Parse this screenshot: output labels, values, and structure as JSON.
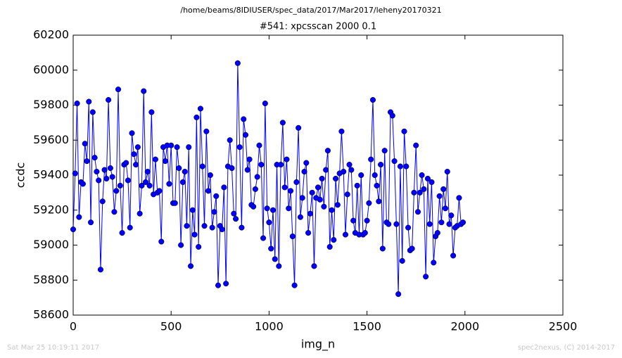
{
  "chart_data": {
    "type": "line",
    "suptitle": "/home/beams/8IDIUSER/spec_data/2017/Mar2017/leheny20170321",
    "title": "#541: xpcsscan 2000 0.1",
    "xlabel": "img_n",
    "ylabel": "ccdc",
    "footer_left": "Sat Mar 25 10:19:11 2017",
    "footer_right": "spec2nexus, (C) 2014-2017",
    "xlim": [
      0,
      2500
    ],
    "xticks": [
      0,
      500,
      1000,
      1500,
      2000,
      2500
    ],
    "ylim": [
      58600,
      60200
    ],
    "yticks": [
      58600,
      58800,
      59000,
      59200,
      59400,
      59600,
      59800,
      60000,
      60200
    ],
    "x": [
      0,
      10,
      20,
      30,
      40,
      50,
      60,
      70,
      80,
      90,
      100,
      110,
      120,
      130,
      140,
      150,
      160,
      170,
      180,
      190,
      200,
      210,
      220,
      230,
      240,
      250,
      260,
      270,
      280,
      290,
      300,
      310,
      320,
      330,
      340,
      350,
      360,
      370,
      380,
      390,
      400,
      410,
      420,
      430,
      440,
      450,
      460,
      470,
      480,
      490,
      500,
      510,
      520,
      530,
      540,
      550,
      560,
      570,
      580,
      590,
      600,
      610,
      620,
      630,
      640,
      650,
      660,
      670,
      680,
      690,
      700,
      710,
      720,
      730,
      740,
      750,
      760,
      770,
      780,
      790,
      800,
      810,
      820,
      830,
      840,
      850,
      860,
      870,
      880,
      890,
      900,
      910,
      920,
      930,
      940,
      950,
      960,
      970,
      980,
      990,
      1000,
      1010,
      1020,
      1030,
      1040,
      1050,
      1060,
      1070,
      1080,
      1090,
      1100,
      1110,
      1120,
      1130,
      1140,
      1150,
      1160,
      1170,
      1180,
      1190,
      1200,
      1210,
      1220,
      1230,
      1240,
      1250,
      1260,
      1270,
      1280,
      1290,
      1300,
      1310,
      1320,
      1330,
      1340,
      1350,
      1360,
      1370,
      1380,
      1390,
      1400,
      1410,
      1420,
      1430,
      1440,
      1450,
      1460,
      1470,
      1480,
      1490,
      1500,
      1510,
      1520,
      1530,
      1540,
      1550,
      1560,
      1570,
      1580,
      1590,
      1600,
      1610,
      1620,
      1630,
      1640,
      1650,
      1660,
      1670,
      1680,
      1690,
      1700,
      1710,
      1720,
      1730,
      1740,
      1750,
      1760,
      1770,
      1780,
      1790,
      1800,
      1810,
      1820,
      1830,
      1840,
      1850,
      1860,
      1870,
      1880,
      1890,
      1900,
      1910,
      1920,
      1930,
      1940,
      1950,
      1960,
      1970,
      1980,
      1990
    ],
    "series": [
      {
        "color": "#0000ff",
        "values": [
          59090,
          59410,
          59810,
          59160,
          59360,
          59350,
          59580,
          59480,
          59820,
          59130,
          59760,
          59500,
          59420,
          59370,
          58860,
          59250,
          59430,
          59380,
          59830,
          59440,
          59390,
          59190,
          59310,
          59890,
          59340,
          59070,
          59460,
          59470,
          59370,
          59100,
          59640,
          59520,
          59460,
          59560,
          59180,
          59340,
          59880,
          59360,
          59420,
          59340,
          59760,
          59290,
          59490,
          59300,
          59310,
          59020,
          59560,
          59480,
          59570,
          59350,
          59570,
          59240,
          59240,
          59560,
          59440,
          59000,
          59360,
          59420,
          59110,
          59560,
          58880,
          59200,
          59060,
          59730,
          58990,
          59780,
          59450,
          59110,
          59650,
          59310,
          59400,
          59100,
          59190,
          59280,
          58770,
          59110,
          59090,
          59330,
          58780,
          59450,
          59600,
          59440,
          59180,
          59150,
          60040,
          59560,
          59100,
          59720,
          59630,
          59430,
          59490,
          59230,
          59220,
          59320,
          59390,
          59570,
          59460,
          59040,
          59810,
          59210,
          59130,
          58980,
          59200,
          58920,
          59460,
          58880,
          59460,
          59700,
          59330,
          59490,
          59210,
          59310,
          59050,
          58770,
          59360,
          59670,
          59160,
          59270,
          59420,
          59470,
          59070,
          59180,
          59300,
          58880,
          59270,
          59330,
          59260,
          59380,
          59220,
          59430,
          59540,
          58990,
          59200,
          59030,
          59380,
          59230,
          59410,
          59650,
          59420,
          59060,
          59290,
          59460,
          59430,
          59140,
          59070,
          59340,
          59060,
          59400,
          59060,
          59070,
          59140,
          59240,
          59490,
          59830,
          59400,
          59340,
          59250,
          59460,
          58980,
          59540,
          59130,
          59120,
          59760,
          59740,
          59480,
          59120,
          58720,
          59450,
          58910,
          59650,
          59450,
          59100,
          58970,
          58980,
          59300,
          59570,
          59190,
          59300,
          59400,
          59320,
          58820,
          59380,
          59120,
          59360,
          58900,
          59050,
          59070,
          59280,
          59130,
          59320,
          59210,
          59420,
          59120,
          59170,
          58940,
          59100,
          59110,
          59270,
          59120,
          59130
        ]
      }
    ]
  }
}
